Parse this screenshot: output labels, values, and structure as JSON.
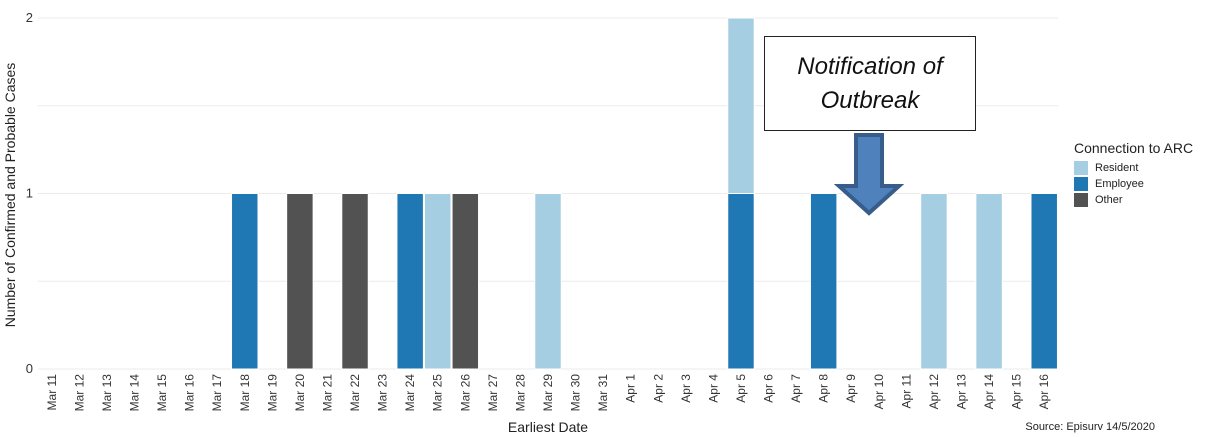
{
  "chart_data": {
    "type": "bar",
    "stacked": true,
    "xlabel": "Earliest Date",
    "ylabel": "Number of Confirmed and Probable Cases",
    "ylim": [
      0,
      2
    ],
    "yticks": [
      "0",
      "1",
      "2"
    ],
    "grid": true,
    "legend_title": "Connection to ARC",
    "legend_position": "right",
    "categories": [
      "Mar 11",
      "Mar 12",
      "Mar 13",
      "Mar 14",
      "Mar 15",
      "Mar 16",
      "Mar 17",
      "Mar 18",
      "Mar 19",
      "Mar 20",
      "Mar 21",
      "Mar 22",
      "Mar 23",
      "Mar 24",
      "Mar 25",
      "Mar 26",
      "Mar 27",
      "Mar 28",
      "Mar 29",
      "Mar 30",
      "Mar 31",
      "Apr 1",
      "Apr 2",
      "Apr 3",
      "Apr 4",
      "Apr 5",
      "Apr 6",
      "Apr 7",
      "Apr 8",
      "Apr 9",
      "Apr 10",
      "Apr 11",
      "Apr 12",
      "Apr 13",
      "Apr 14",
      "Apr 15",
      "Apr 16"
    ],
    "series": [
      {
        "name": "Employee",
        "color": "#1f78b4",
        "values": [
          0,
          0,
          0,
          0,
          0,
          0,
          0,
          1,
          0,
          0,
          0,
          0,
          0,
          1,
          0,
          0,
          0,
          0,
          0,
          0,
          0,
          0,
          0,
          0,
          0,
          1,
          0,
          0,
          1,
          0,
          0,
          0,
          0,
          0,
          0,
          0,
          1
        ]
      },
      {
        "name": "Resident",
        "color": "#a6cee3",
        "values": [
          0,
          0,
          0,
          0,
          0,
          0,
          0,
          0,
          0,
          0,
          0,
          0,
          0,
          0,
          1,
          0,
          0,
          0,
          1,
          0,
          0,
          0,
          0,
          0,
          0,
          1,
          0,
          0,
          0,
          0,
          0,
          0,
          1,
          0,
          1,
          0,
          0
        ]
      },
      {
        "name": "Other",
        "color": "#525252",
        "values": [
          0,
          0,
          0,
          0,
          0,
          0,
          0,
          0,
          0,
          1,
          0,
          1,
          0,
          0,
          0,
          1,
          0,
          0,
          0,
          0,
          0,
          0,
          0,
          0,
          0,
          0,
          0,
          0,
          0,
          0,
          0,
          0,
          0,
          0,
          0,
          0,
          0
        ]
      }
    ],
    "legend_order": [
      "Resident",
      "Employee",
      "Other"
    ],
    "annotation": {
      "line1": "Notification of",
      "line2": "Outbreak",
      "points_to": "Apr 9",
      "arrow_color": "#4f81bd",
      "arrow_edge_color": "#385d8a"
    },
    "source": "Source: Episurv 14/5/2020"
  }
}
